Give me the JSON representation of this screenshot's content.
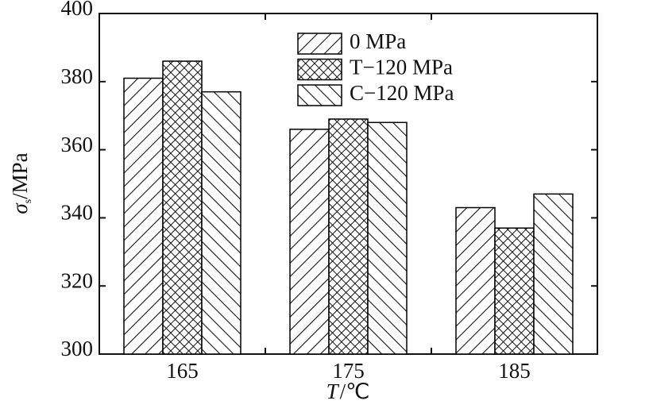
{
  "chart_data": {
    "type": "bar",
    "ylabel": [
      "σ",
      "s",
      "/MPa"
    ],
    "xlabel": [
      "T",
      "/℃"
    ],
    "categories": [
      "165",
      "175",
      "185"
    ],
    "series": [
      {
        "name": "0 MPa",
        "color": "#000000",
        "hatch": "/",
        "values": [
          381,
          366,
          343
        ]
      },
      {
        "name": "T−120 MPa",
        "color": "#000000",
        "hatch": "x",
        "values": [
          386,
          369,
          337
        ]
      },
      {
        "name": "C−120 MPa",
        "color": "#000000",
        "hatch": "\\",
        "values": [
          377,
          368,
          347
        ]
      }
    ],
    "ylim": [
      300,
      400
    ],
    "yticks": [
      300,
      320,
      340,
      360,
      380,
      400
    ],
    "grid": false,
    "legend": "top"
  }
}
